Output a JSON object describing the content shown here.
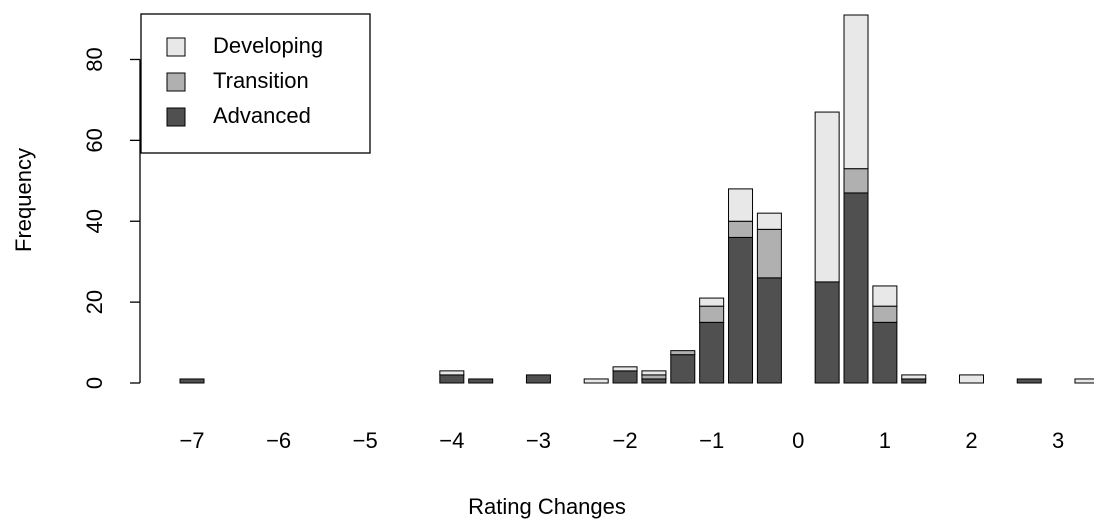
{
  "chart_data": {
    "type": "stacked-bar",
    "x_label": "Rating Changes",
    "y_label": "Frequency",
    "categories": [
      "−7",
      null,
      null,
      "−6",
      null,
      null,
      "−5",
      null,
      null,
      "−4",
      null,
      null,
      "−3",
      null,
      null,
      "−2",
      null,
      null,
      "−1",
      null,
      null,
      "0",
      null,
      null,
      "1",
      null,
      null,
      "2",
      null,
      null,
      "3",
      null
    ],
    "series": [
      {
        "name": "Developing",
        "color": "#e8e8e8",
        "values": [
          0,
          0,
          0,
          0,
          0,
          0,
          0,
          0,
          0,
          1,
          0,
          0,
          0,
          0,
          1,
          1,
          1,
          0,
          2,
          8,
          4,
          0,
          42,
          38,
          5,
          1,
          0,
          2,
          0,
          0,
          0,
          1
        ]
      },
      {
        "name": "Transition",
        "color": "#b0b0b0",
        "values": [
          0,
          0,
          0,
          0,
          0,
          0,
          0,
          0,
          0,
          0,
          0,
          0,
          0,
          0,
          0,
          0,
          1,
          1,
          4,
          4,
          12,
          0,
          0,
          6,
          4,
          0,
          0,
          0,
          0,
          0,
          0,
          0
        ]
      },
      {
        "name": "Advanced",
        "color": "#505050",
        "values": [
          1,
          0,
          0,
          0,
          0,
          0,
          0,
          0,
          0,
          2,
          1,
          0,
          2,
          0,
          0,
          3,
          1,
          7,
          15,
          36,
          26,
          0,
          25,
          47,
          15,
          1,
          0,
          0,
          0,
          1,
          0,
          0
        ]
      }
    ],
    "ylim": [
      0,
      91
    ],
    "yticks": [
      0,
      20,
      40,
      60,
      80
    ],
    "legend": "top-left"
  }
}
